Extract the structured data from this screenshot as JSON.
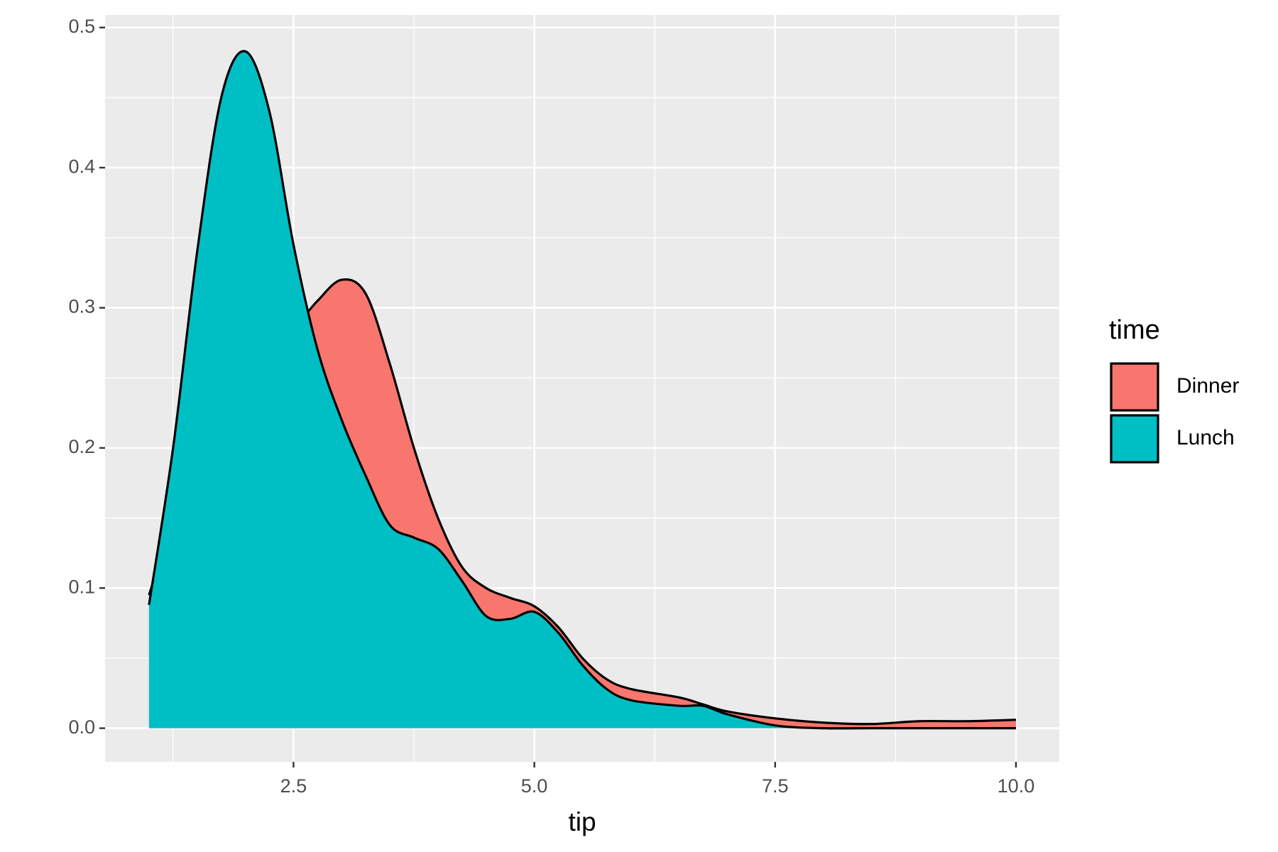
{
  "chart_data": {
    "type": "density",
    "x_label": "tip",
    "x": [
      1,
      1.25,
      1.5,
      1.75,
      2,
      2.25,
      2.5,
      2.75,
      3,
      3.25,
      3.5,
      3.75,
      4,
      4.25,
      4.5,
      4.75,
      5,
      5.25,
      5.5,
      5.75,
      6,
      6.5,
      6.75,
      7,
      7.5,
      8,
      8.5,
      9,
      9.5,
      10
    ],
    "series": [
      {
        "name": "Dinner",
        "color": "#f8766d",
        "values": [
          0.095,
          0.15,
          0.22,
          0.27,
          0.28,
          0.27,
          0.285,
          0.305,
          0.32,
          0.31,
          0.26,
          0.2,
          0.15,
          0.115,
          0.1,
          0.093,
          0.087,
          0.072,
          0.05,
          0.035,
          0.028,
          0.022,
          0.017,
          0.012,
          0.007,
          0.004,
          0.003,
          0.005,
          0.005,
          0.006
        ]
      },
      {
        "name": "Lunch",
        "color": "#00bfc4",
        "values": [
          0.088,
          0.2,
          0.34,
          0.45,
          0.483,
          0.44,
          0.345,
          0.27,
          0.22,
          0.18,
          0.145,
          0.136,
          0.128,
          0.105,
          0.08,
          0.078,
          0.083,
          0.068,
          0.045,
          0.028,
          0.02,
          0.016,
          0.016,
          0.01,
          0.002,
          0,
          0,
          0,
          0,
          0
        ]
      }
    ],
    "legend_title": "time",
    "legend_position": "right",
    "xlim": [
      0.544,
      10.45
    ],
    "ylim": [
      -0.024,
      0.509
    ],
    "xticks": [
      {
        "value": 2.5,
        "label": "2.5"
      },
      {
        "value": 5,
        "label": "5.0"
      },
      {
        "value": 7.5,
        "label": "7.5"
      },
      {
        "value": 10,
        "label": "10.0"
      }
    ],
    "yticks": [
      {
        "value": 0,
        "label": "0.0"
      },
      0.1,
      0.2,
      0.3,
      0.4,
      0.5
    ],
    "grid": true
  }
}
